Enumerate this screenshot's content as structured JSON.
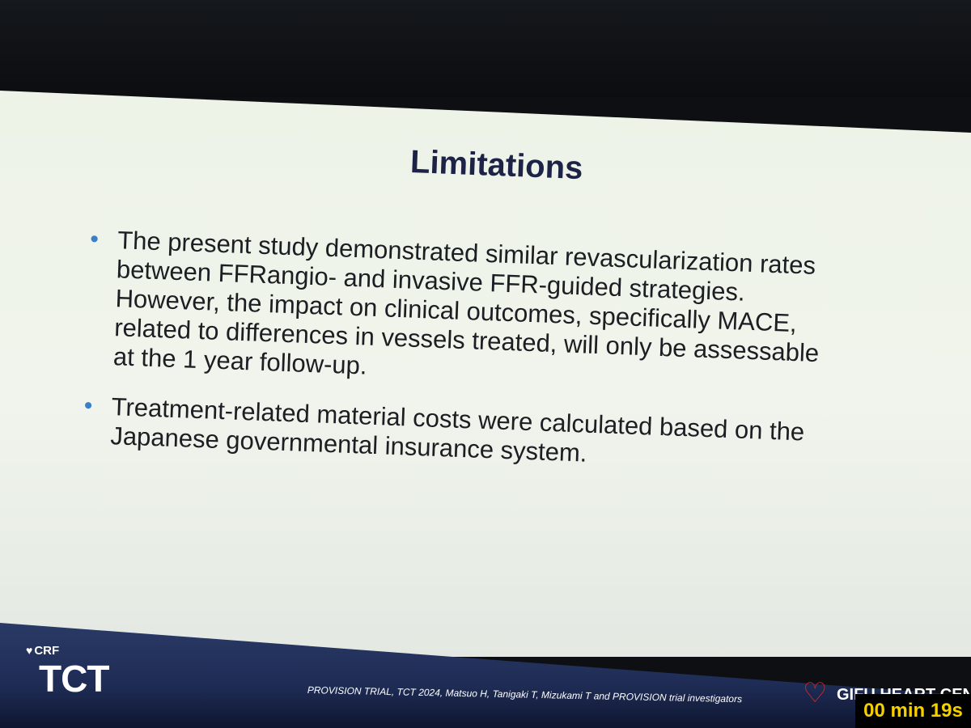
{
  "slide": {
    "title": "Limitations",
    "bullets": [
      {
        "lines": [
          "The present study demonstrated similar revascularization rates",
          "between FFRangio- and invasive FFR-guided strategies.",
          "However, the impact on clinical outcomes, specifically MACE,",
          "related to differences in vessels treated, will only be assessable",
          "at the 1 year follow-up."
        ]
      },
      {
        "lines": [
          "Treatment-related material costs were calculated based on the",
          "Japanese governmental insurance system."
        ]
      }
    ]
  },
  "footer": {
    "crf": "CRF",
    "tct": "TCT",
    "citation": "PROVISION TRIAL, TCT 2024, Matsuo H, Tanigaki T, Mizukami T and PROVISION trial investigators",
    "gifu_text": "GIFU HEART CENTER"
  },
  "overlay": {
    "timer": "00 min 19s"
  },
  "colors": {
    "title": "#1c2347",
    "bullet": "#3a7fc8",
    "footer": "#1e2c55",
    "timer_text": "#f4d000"
  }
}
